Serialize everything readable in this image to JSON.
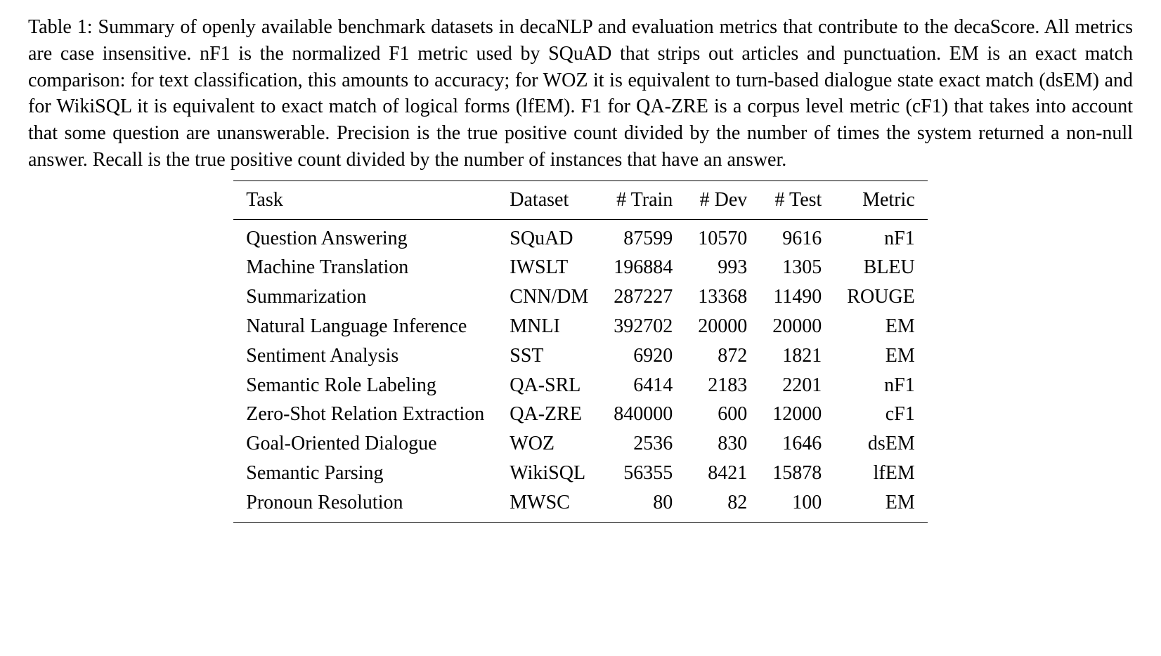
{
  "caption": "Table 1:  Summary of openly available benchmark datasets in decaNLP and evaluation metrics that contribute to the decaScore. All metrics are case insensitive. nF1 is the normalized F1 metric used by SQuAD that strips out articles and punctuation. EM is an exact match comparison: for text classification, this amounts to accuracy; for WOZ it is equivalent to turn-based dialogue state exact match (dsEM) and for WikiSQL it is equivalent to exact match of logical forms (lfEM). F1 for QA-ZRE is a corpus level metric (cF1) that takes into account that some question are unanswerable. Precision is the true positive count divided by the number of times the system returned a non-null answer. Recall is the true positive count divided by the number of instances that have an answer.",
  "table": {
    "type": "table",
    "border_color": "#000000",
    "background_color": "#ffffff",
    "text_color": "#000000",
    "font_family": "Times New Roman",
    "fontsize": 28,
    "column_alignments": [
      "left",
      "left",
      "right",
      "right",
      "right",
      "right"
    ],
    "columns": [
      "Task",
      "Dataset",
      "# Train",
      "# Dev",
      "# Test",
      "Metric"
    ],
    "rows": [
      [
        "Question Answering",
        "SQuAD",
        "87599",
        "10570",
        "9616",
        "nF1"
      ],
      [
        "Machine Translation",
        "IWSLT",
        "196884",
        "993",
        "1305",
        "BLEU"
      ],
      [
        "Summarization",
        "CNN/DM",
        "287227",
        "13368",
        "11490",
        "ROUGE"
      ],
      [
        "Natural Language Inference",
        "MNLI",
        "392702",
        "20000",
        "20000",
        "EM"
      ],
      [
        "Sentiment Analysis",
        "SST",
        "6920",
        "872",
        "1821",
        "EM"
      ],
      [
        "Semantic Role Labeling",
        "QA-SRL",
        "6414",
        "2183",
        "2201",
        "nF1"
      ],
      [
        "Zero-Shot Relation Extraction",
        "QA-ZRE",
        "840000",
        "600",
        "12000",
        "cF1"
      ],
      [
        "Goal-Oriented Dialogue",
        "WOZ",
        "2536",
        "830",
        "1646",
        "dsEM"
      ],
      [
        "Semantic Parsing",
        "WikiSQL",
        "56355",
        "8421",
        "15878",
        "lfEM"
      ],
      [
        "Pronoun Resolution",
        "MWSC",
        "80",
        "82",
        "100",
        "EM"
      ]
    ]
  }
}
